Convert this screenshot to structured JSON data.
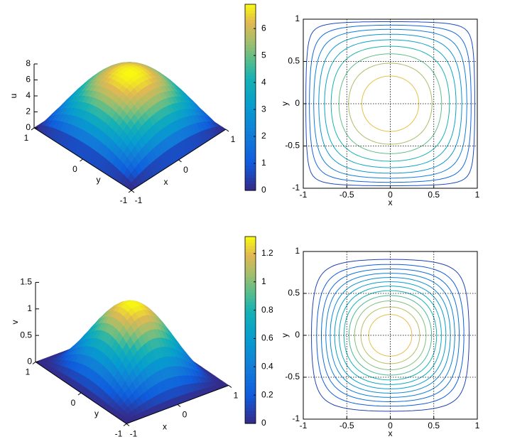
{
  "chart_data": [
    {
      "type": "surface",
      "zlabel": "u",
      "xlabel": "x",
      "ylabel": "y",
      "xlim": [
        -1,
        1
      ],
      "ylim": [
        -1,
        1
      ],
      "xticks": [
        -1,
        0,
        1
      ],
      "yticks": [
        -1,
        0,
        1
      ],
      "zlim": [
        0,
        8
      ],
      "zticks": [
        0,
        2,
        4,
        6,
        8
      ],
      "zmax": 6.9,
      "clim": [
        0,
        6.9
      ],
      "cticks": [
        0,
        1,
        2,
        3,
        4,
        5,
        6
      ]
    },
    {
      "type": "contour",
      "xlabel": "x",
      "ylabel": "y",
      "xlim": [
        -1,
        1
      ],
      "ylim": [
        -1,
        1
      ],
      "xticks": [
        -1,
        -0.5,
        0,
        0.5,
        1
      ],
      "yticks": [
        -1,
        -0.5,
        0,
        0.5,
        1
      ],
      "grid": true,
      "levels": [
        0.7,
        1.4,
        2.1,
        2.8,
        3.5,
        4.2,
        4.9,
        5.6,
        6.3
      ]
    },
    {
      "type": "surface",
      "zlabel": "v",
      "xlabel": "x",
      "ylabel": "y",
      "xlim": [
        -1,
        1
      ],
      "ylim": [
        -1,
        1
      ],
      "xticks": [
        -1,
        0,
        1
      ],
      "yticks": [
        -1,
        0,
        1
      ],
      "zlim": [
        0,
        1.5
      ],
      "zticks": [
        0,
        0.5,
        1,
        1.5
      ],
      "zmax": 1.32,
      "clim": [
        0,
        1.32
      ],
      "cticks": [
        0,
        0.2,
        0.4,
        0.6,
        0.8,
        1,
        1.2
      ]
    },
    {
      "type": "contour",
      "xlabel": "x",
      "ylabel": "y",
      "xlim": [
        -1,
        1
      ],
      "ylim": [
        -1,
        1
      ],
      "xticks": [
        -1,
        -0.5,
        0,
        0.5,
        1
      ],
      "yticks": [
        -1,
        -0.5,
        0,
        0.5,
        1
      ],
      "grid": true,
      "levels": [
        0.1,
        0.2,
        0.3,
        0.4,
        0.5,
        0.6,
        0.7,
        0.8,
        0.9,
        1,
        1.1,
        1.2
      ]
    }
  ]
}
